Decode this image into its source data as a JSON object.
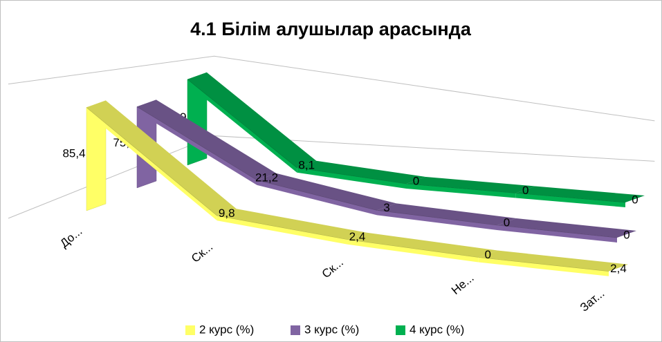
{
  "chart_data": {
    "type": "line3d",
    "title": "4.1 Білім алушылар арасында",
    "categories": [
      "До...",
      "Ск...",
      "Ск...",
      "Не...",
      "Зат..."
    ],
    "series": [
      {
        "name": "2 курс (%)",
        "color": "#ffff66",
        "values": [
          85.4,
          9.8,
          2.4,
          0,
          2.4
        ],
        "value_labels": [
          "85,4",
          "9,8",
          "2,4",
          "0",
          "2,4"
        ]
      },
      {
        "name": "3 курс (%)",
        "color": "#8064a2",
        "values": [
          75.8,
          21.2,
          3,
          0,
          0
        ],
        "value_labels": [
          "75,8",
          "21,2",
          "3",
          "0",
          "0"
        ]
      },
      {
        "name": "4 курс (%)",
        "color": "#00b050",
        "values": [
          91.9,
          8.1,
          0,
          0,
          0
        ],
        "value_labels": [
          "91,9",
          "8,1",
          "0",
          "0",
          "0"
        ]
      }
    ],
    "ylim": [
      0,
      100
    ],
    "grid": true,
    "legend": "bottom"
  }
}
